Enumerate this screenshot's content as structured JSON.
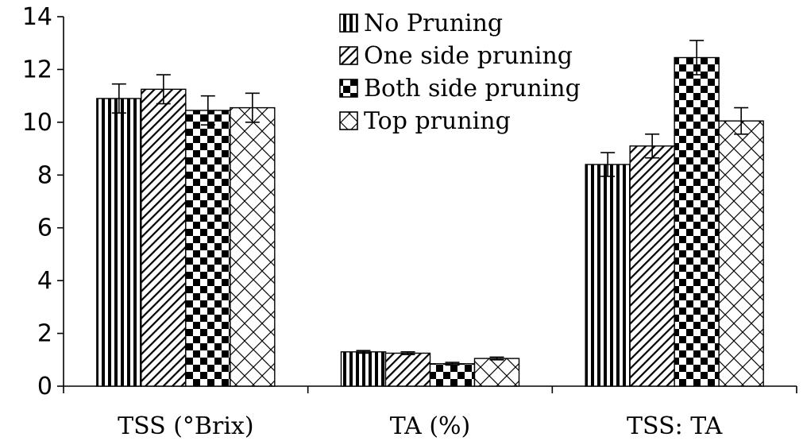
{
  "chart_data": {
    "type": "bar",
    "categories": [
      "TSS (°Brix)",
      "TA (%)",
      "TSS: TA"
    ],
    "series": [
      {
        "name": "No Pruning",
        "pattern": "vertical-stripes",
        "values": [
          10.9,
          1.3,
          8.4
        ],
        "errors": [
          0.55,
          0.05,
          0.45
        ]
      },
      {
        "name": "One side pruning",
        "pattern": "diagonal-hatch",
        "values": [
          11.25,
          1.25,
          9.1
        ],
        "errors": [
          0.55,
          0.05,
          0.45
        ]
      },
      {
        "name": "Both side pruning",
        "pattern": "checkerboard",
        "values": [
          10.45,
          0.85,
          12.45
        ],
        "errors": [
          0.55,
          0.05,
          0.65
        ]
      },
      {
        "name": "Top pruning",
        "pattern": "diamond-lattice",
        "values": [
          10.55,
          1.05,
          10.05
        ],
        "errors": [
          0.55,
          0.05,
          0.5
        ]
      }
    ],
    "yticks": [
      0,
      2,
      4,
      6,
      8,
      10,
      12,
      14
    ],
    "ylim": [
      0,
      14
    ],
    "grid": false,
    "legend_position": "top-center",
    "colors": {
      "bar_fill": "#000000",
      "background": "#ffffff"
    }
  }
}
